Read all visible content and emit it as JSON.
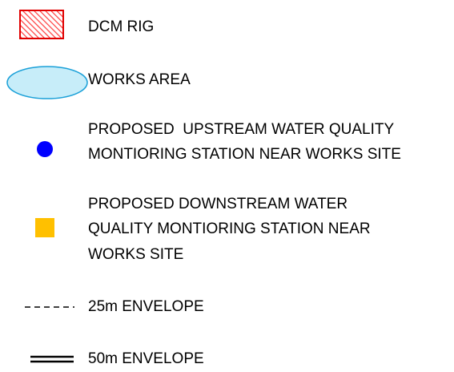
{
  "legend": {
    "items": [
      {
        "lines": [
          "DCM RIG"
        ]
      },
      {
        "lines": [
          "WORKS AREA"
        ]
      },
      {
        "lines": [
          "PROPOSED  UPSTREAM WATER QUALITY",
          "MONTIORING STATION NEAR WORKS SITE"
        ]
      },
      {
        "lines": [
          "PROPOSED DOWNSTREAM WATER",
          "QUALITY MONTIORING STATION NEAR",
          "WORKS SITE"
        ]
      },
      {
        "lines": [
          "25m ENVELOPE"
        ]
      },
      {
        "lines": [
          "50m ENVELOPE"
        ]
      }
    ]
  }
}
